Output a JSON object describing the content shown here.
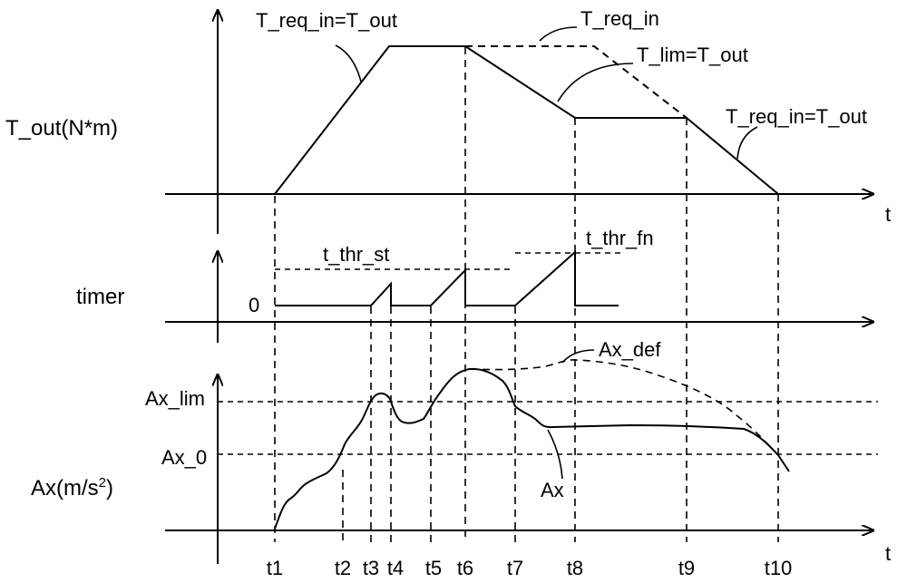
{
  "colors": {
    "ink": "#000000",
    "paper": "#ffffff"
  },
  "panels": {
    "torque": {
      "ylabel": "T_out(N*m)",
      "xlabel": "t"
    },
    "timer": {
      "ylabel": "timer",
      "zero": "0"
    },
    "accel": {
      "ylabel_main": "Ax(m/s",
      "ylabel_sup": "2",
      "ylabel_tail": ")",
      "xlabel": "t",
      "level_lim": "Ax_lim",
      "level_0": "Ax_0"
    }
  },
  "annotations": {
    "req_eq_out_rise": "T_req_in=T_out",
    "req_in": "T_req_in",
    "lim_eq_out": "T_lim=T_out",
    "req_eq_out_fall": "T_req_in=T_out",
    "thr_st": "t_thr_st",
    "thr_fn": "t_thr_fn",
    "ax_def": "Ax_def",
    "ax": "Ax"
  },
  "time_ticks": [
    "t1",
    "t2",
    "t3",
    "t4",
    "t5",
    "t6",
    "t7",
    "t8",
    "t9",
    "t10"
  ]
}
